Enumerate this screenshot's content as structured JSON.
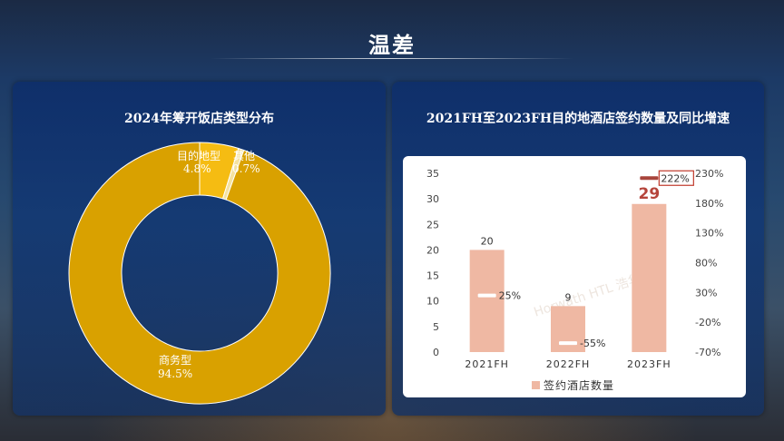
{
  "page": {
    "title": "温差"
  },
  "left_panel": {
    "title": "2024年筹开饭店类型分布"
  },
  "right_panel": {
    "title": "2021FH至2023FH目的地酒店签约数量及同比增速"
  },
  "watermark": "Horwath HTL 浩华",
  "colors": {
    "business": "#d9a100",
    "destination": "#f5bc12",
    "other": "#f4e2a2",
    "bar": "#efb8a3",
    "bar_label_highlight": "#b5443b",
    "line_mark": "#a8453c"
  },
  "chart_data": [
    {
      "type": "pie",
      "title": "2024年筹开饭店类型分布",
      "donut": true,
      "slices": [
        {
          "label": "商务型",
          "value_text": "94.5%",
          "value": 94.5
        },
        {
          "label": "目的地型",
          "value_text": "4.8%",
          "value": 4.8
        },
        {
          "label": "其他",
          "value_text": "0.7%",
          "value": 0.7
        }
      ]
    },
    {
      "type": "bar",
      "title": "2021FH至2023FH目的地酒店签约数量及同比增速",
      "categories": [
        "2021FH",
        "2022FH",
        "2023FH"
      ],
      "series": [
        {
          "name": "签约酒店数量",
          "values": [
            20,
            9,
            29
          ],
          "value_labels": [
            "20",
            "9",
            "29"
          ]
        }
      ],
      "growth": {
        "values": [
          25,
          -55,
          222
        ],
        "labels": [
          "25%",
          "-55%",
          "222%"
        ]
      },
      "ylim": [
        0,
        35
      ],
      "y_ticks": [
        "0",
        "5",
        "10",
        "15",
        "20",
        "25",
        "30",
        "35"
      ],
      "y2lim": [
        -70,
        230
      ],
      "y2_ticks": [
        "-70%",
        "-20%",
        "30%",
        "80%",
        "130%",
        "180%",
        "230%"
      ],
      "legend_position": "bottom"
    }
  ]
}
